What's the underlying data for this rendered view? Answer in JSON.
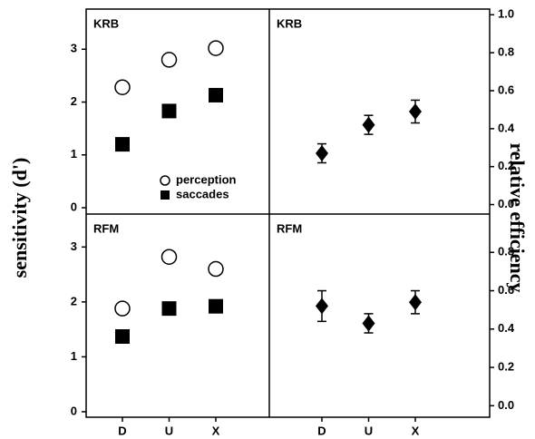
{
  "chart_data": [
    {
      "type": "scatter",
      "title": "KRB",
      "ylabel": "sensitivity (d')",
      "ylim": [
        -0.12,
        3.76
      ],
      "yticks": [
        0,
        1,
        2,
        3
      ],
      "legend": "lower-right",
      "series": [
        {
          "name": "perception",
          "marker": "open-circle",
          "color": "#000000",
          "values": [
            2.28,
            2.8,
            3.02
          ]
        },
        {
          "name": "saccades",
          "marker": "square",
          "color": "#000000",
          "values": [
            1.2,
            1.83,
            2.13
          ]
        }
      ]
    },
    {
      "type": "errorbar",
      "title": "KRB",
      "ylabel": "relative efficiency",
      "ylim": [
        -0.05,
        1.03
      ],
      "yticks": [
        {
          "value": 0,
          "label": "0.0"
        },
        {
          "value": 0.2,
          "label": "0.2"
        },
        {
          "value": 0.4,
          "label": "0.4"
        },
        {
          "value": 0.6,
          "label": "0.6"
        },
        {
          "value": 0.8,
          "label": "0.8"
        },
        {
          "value": 1,
          "label": "1.0"
        }
      ],
      "series": [
        {
          "marker": "diamond",
          "color": "#000000",
          "values": [
            0.27,
            0.42,
            0.49
          ],
          "errors": [
            0.05,
            0.05,
            0.06
          ]
        }
      ]
    },
    {
      "type": "scatter",
      "title": "RFM",
      "categories": [
        "D",
        "U",
        "X"
      ],
      "ylim": [
        -0.1,
        3.6
      ],
      "yticks": [
        0,
        1,
        2,
        3
      ],
      "series": [
        {
          "marker": "open-circle",
          "color": "#000000",
          "values": [
            1.88,
            2.82,
            2.6
          ]
        },
        {
          "marker": "square",
          "color": "#000000",
          "values": [
            1.37,
            1.88,
            1.92
          ]
        }
      ]
    },
    {
      "type": "errorbar",
      "title": "RFM",
      "categories": [
        "D",
        "U",
        "X"
      ],
      "ylim": [
        -0.06,
        1.0
      ],
      "yticks": [
        {
          "value": 0,
          "label": "0.0"
        },
        {
          "value": 0.2,
          "label": "0.2"
        },
        {
          "value": 0.4,
          "label": "0.4"
        },
        {
          "value": 0.6,
          "label": "0.6"
        },
        {
          "value": 0.8,
          "label": "0.8"
        }
      ],
      "series": [
        {
          "marker": "diamond",
          "color": "#000000",
          "values": [
            0.52,
            0.43,
            0.54
          ],
          "errors": [
            0.08,
            0.05,
            0.06
          ]
        }
      ]
    }
  ]
}
